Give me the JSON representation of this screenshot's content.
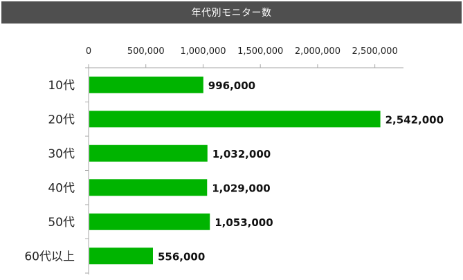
{
  "header": {
    "title": "年代別モニター数"
  },
  "colors": {
    "header_bg": "#4f4f4f",
    "bar": "#00b400",
    "axis": "#a6a6a6"
  },
  "chart_data": {
    "type": "bar",
    "orientation": "horizontal",
    "title": "年代別モニター数",
    "categories": [
      "10代",
      "20代",
      "30代",
      "40代",
      "50代",
      "60代以上"
    ],
    "values": [
      996000,
      2542000,
      1032000,
      1029000,
      1053000,
      556000
    ],
    "value_labels": [
      "996,000",
      "2,542,000",
      "1,032,000",
      "1,029,000",
      "1,053,000",
      "556,000"
    ],
    "xlim": [
      0,
      2750000
    ],
    "xticks": [
      0,
      500000,
      1000000,
      1500000,
      2000000,
      2500000
    ],
    "xtick_labels": [
      "0",
      "500,000",
      "1,000,000",
      "1,500,000",
      "2,000,000",
      "2,500,000"
    ],
    "axis_position": "top",
    "grid": false,
    "legend": "none"
  }
}
